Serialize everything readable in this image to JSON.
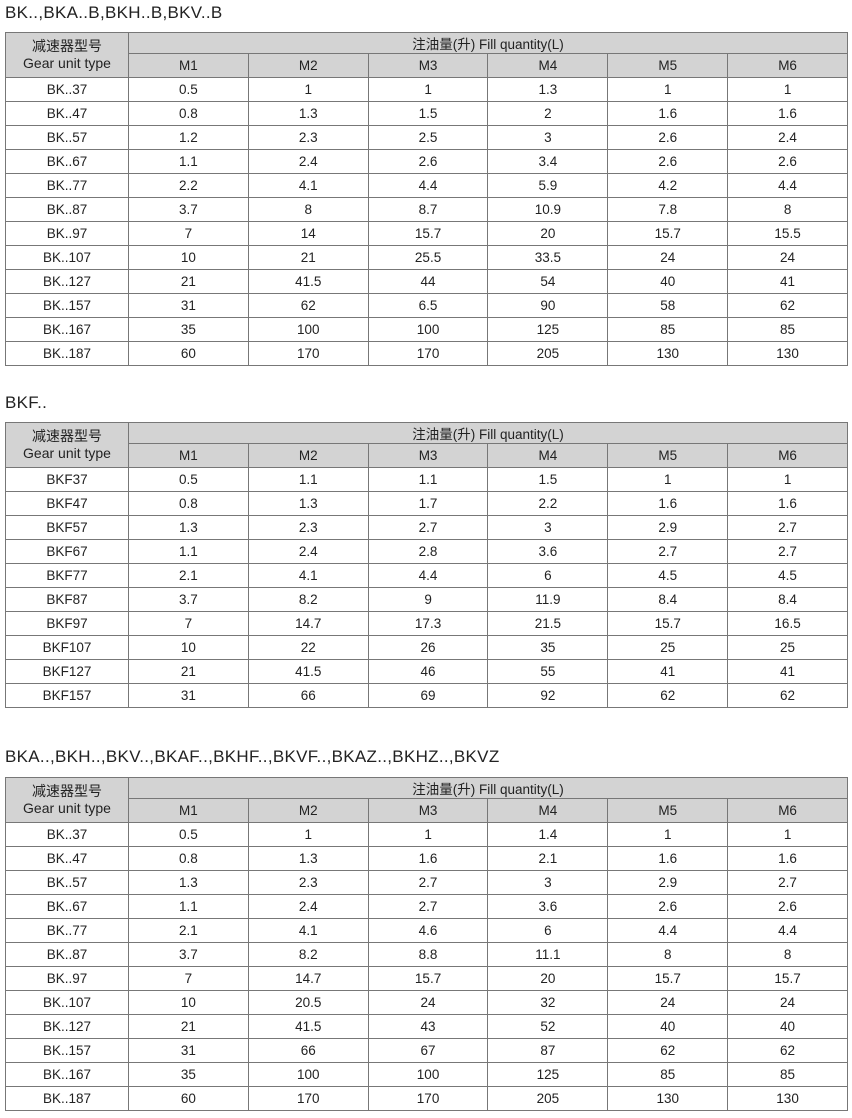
{
  "header": {
    "type_cn": "减速器型号",
    "type_en": "Gear unit type",
    "fill": "注油量(升) Fill quantity(L)",
    "positions": [
      "M1",
      "M2",
      "M3",
      "M4",
      "M5",
      "M6"
    ]
  },
  "colors": {
    "header_bg": "#d3d3d3",
    "border": "#777777"
  },
  "tables": [
    {
      "title": "BK..,BKA..B,BKH..B,BKV..B",
      "rows": [
        [
          "BK..37",
          "0.5",
          "1",
          "1",
          "1.3",
          "1",
          "1"
        ],
        [
          "BK..47",
          "0.8",
          "1.3",
          "1.5",
          "2",
          "1.6",
          "1.6"
        ],
        [
          "BK..57",
          "1.2",
          "2.3",
          "2.5",
          "3",
          "2.6",
          "2.4"
        ],
        [
          "BK..67",
          "1.1",
          "2.4",
          "2.6",
          "3.4",
          "2.6",
          "2.6"
        ],
        [
          "BK..77",
          "2.2",
          "4.1",
          "4.4",
          "5.9",
          "4.2",
          "4.4"
        ],
        [
          "BK..87",
          "3.7",
          "8",
          "8.7",
          "10.9",
          "7.8",
          "8"
        ],
        [
          "BK..97",
          "7",
          "14",
          "15.7",
          "20",
          "15.7",
          "15.5"
        ],
        [
          "BK..107",
          "10",
          "21",
          "25.5",
          "33.5",
          "24",
          "24"
        ],
        [
          "BK..127",
          "21",
          "41.5",
          "44",
          "54",
          "40",
          "41"
        ],
        [
          "BK..157",
          "31",
          "62",
          "6.5",
          "90",
          "58",
          "62"
        ],
        [
          "BK..167",
          "35",
          "100",
          "100",
          "125",
          "85",
          "85"
        ],
        [
          "BK..187",
          "60",
          "170",
          "170",
          "205",
          "130",
          "130"
        ]
      ]
    },
    {
      "title": "BKF..",
      "rows": [
        [
          "BKF37",
          "0.5",
          "1.1",
          "1.1",
          "1.5",
          "1",
          "1"
        ],
        [
          "BKF47",
          "0.8",
          "1.3",
          "1.7",
          "2.2",
          "1.6",
          "1.6"
        ],
        [
          "BKF57",
          "1.3",
          "2.3",
          "2.7",
          "3",
          "2.9",
          "2.7"
        ],
        [
          "BKF67",
          "1.1",
          "2.4",
          "2.8",
          "3.6",
          "2.7",
          "2.7"
        ],
        [
          "BKF77",
          "2.1",
          "4.1",
          "4.4",
          "6",
          "4.5",
          "4.5"
        ],
        [
          "BKF87",
          "3.7",
          "8.2",
          "9",
          "11.9",
          "8.4",
          "8.4"
        ],
        [
          "BKF97",
          "7",
          "14.7",
          "17.3",
          "21.5",
          "15.7",
          "16.5"
        ],
        [
          "BKF107",
          "10",
          "22",
          "26",
          "35",
          "25",
          "25"
        ],
        [
          "BKF127",
          "21",
          "41.5",
          "46",
          "55",
          "41",
          "41"
        ],
        [
          "BKF157",
          "31",
          "66",
          "69",
          "92",
          "62",
          "62"
        ]
      ]
    },
    {
      "title": "BKA..,BKH..,BKV..,BKAF..,BKHF..,BKVF..,BKAZ..,BKHZ..,BKVZ",
      "rows": [
        [
          "BK..37",
          "0.5",
          "1",
          "1",
          "1.4",
          "1",
          "1"
        ],
        [
          "BK..47",
          "0.8",
          "1.3",
          "1.6",
          "2.1",
          "1.6",
          "1.6"
        ],
        [
          "BK..57",
          "1.3",
          "2.3",
          "2.7",
          "3",
          "2.9",
          "2.7"
        ],
        [
          "BK..67",
          "1.1",
          "2.4",
          "2.7",
          "3.6",
          "2.6",
          "2.6"
        ],
        [
          "BK..77",
          "2.1",
          "4.1",
          "4.6",
          "6",
          "4.4",
          "4.4"
        ],
        [
          "BK..87",
          "3.7",
          "8.2",
          "8.8",
          "11.1",
          "8",
          "8"
        ],
        [
          "BK..97",
          "7",
          "14.7",
          "15.7",
          "20",
          "15.7",
          "15.7"
        ],
        [
          "BK..107",
          "10",
          "20.5",
          "24",
          "32",
          "24",
          "24"
        ],
        [
          "BK..127",
          "21",
          "41.5",
          "43",
          "52",
          "40",
          "40"
        ],
        [
          "BK..157",
          "31",
          "66",
          "67",
          "87",
          "62",
          "62"
        ],
        [
          "BK..167",
          "35",
          "100",
          "100",
          "125",
          "85",
          "85"
        ],
        [
          "BK..187",
          "60",
          "170",
          "170",
          "205",
          "130",
          "130"
        ]
      ]
    }
  ]
}
